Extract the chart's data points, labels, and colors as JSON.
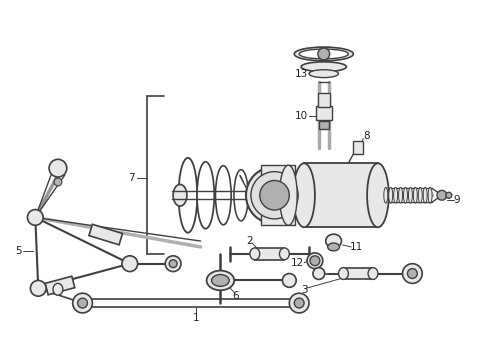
{
  "background_color": "#ffffff",
  "line_color": "#404040",
  "text_color": "#222222",
  "figsize": [
    4.9,
    3.6
  ],
  "dpi": 100,
  "border_color": "#888888"
}
